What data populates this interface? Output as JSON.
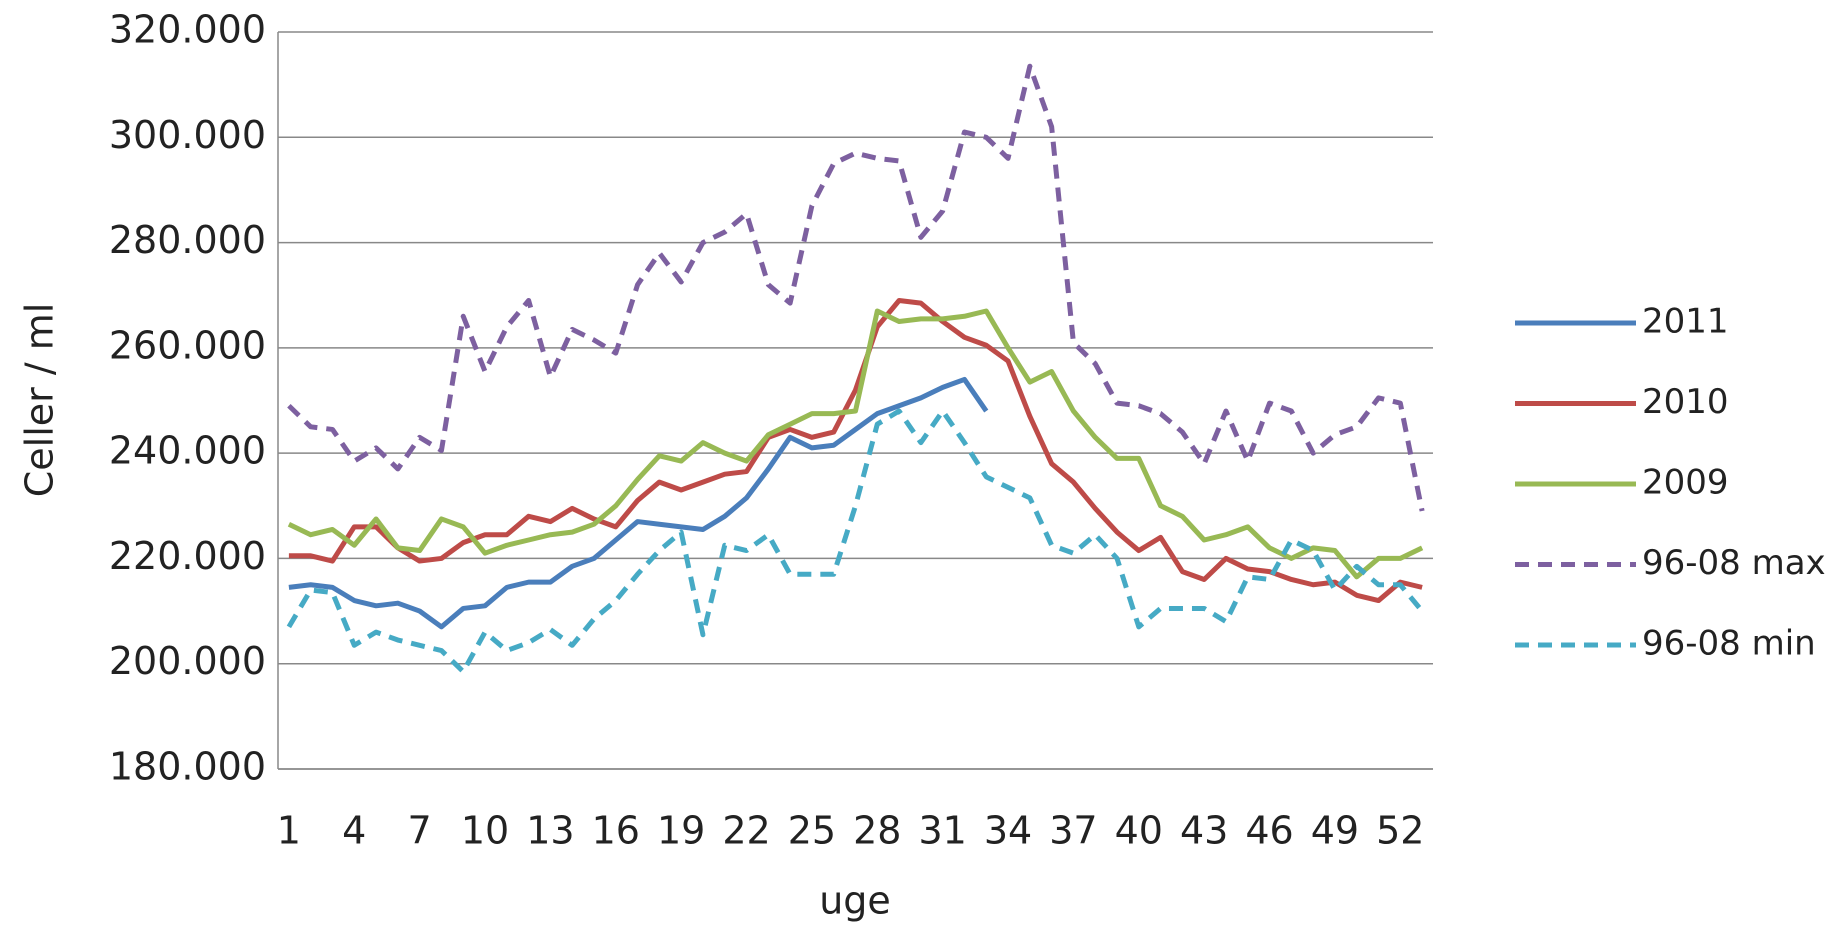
{
  "chart_data": {
    "type": "line",
    "y_label": "Celler / ml",
    "x_label": "uge",
    "categories": [
      "1",
      null,
      null,
      "4",
      null,
      null,
      "7",
      null,
      null,
      "10",
      null,
      null,
      "13",
      null,
      null,
      "16",
      null,
      null,
      "19",
      null,
      null,
      "22",
      null,
      null,
      "25",
      null,
      null,
      "28",
      null,
      null,
      "31",
      null,
      null,
      "34",
      null,
      null,
      "37",
      null,
      null,
      "40",
      null,
      null,
      "43",
      null,
      null,
      "46",
      null,
      null,
      "49",
      null,
      null,
      "52",
      null
    ],
    "ylim": [
      180000,
      320000
    ],
    "yticks": [
      {
        "value": 180000,
        "label": "180.000"
      },
      {
        "value": 200000,
        "label": "200.000"
      },
      {
        "value": 220000,
        "label": "220.000"
      },
      {
        "value": 240000,
        "label": "240.000"
      },
      {
        "value": 260000,
        "label": "260.000"
      },
      {
        "value": 280000,
        "label": "280.000"
      },
      {
        "value": 300000,
        "label": "300.000"
      },
      {
        "value": 320000,
        "label": "320.000"
      }
    ],
    "grid": true,
    "legend": "right",
    "series": [
      {
        "name": "2011",
        "color": "#4a7ebb",
        "line_style": "solid",
        "values": [
          214500,
          215000,
          214500,
          212000,
          211000,
          211500,
          210000,
          207000,
          210500,
          211000,
          214500,
          215500,
          215500,
          218500,
          220000,
          223500,
          227000,
          226500,
          226000,
          225500,
          228000,
          231500,
          237000,
          243000,
          241000,
          241500,
          244500,
          247500,
          249000,
          250500,
          252500,
          254000,
          248000,
          null,
          null,
          null,
          null,
          null,
          null,
          null,
          null,
          null,
          null,
          null,
          null,
          null,
          null,
          null,
          null,
          null,
          null,
          null,
          null
        ]
      },
      {
        "name": "2010",
        "color": "#be4b48",
        "line_style": "solid",
        "values": [
          220500,
          220500,
          219500,
          226000,
          226000,
          222000,
          219500,
          220000,
          223000,
          224500,
          224500,
          228000,
          227000,
          229500,
          227500,
          226000,
          231000,
          234500,
          233000,
          234500,
          236000,
          236500,
          243000,
          244500,
          243000,
          244000,
          252000,
          264000,
          269000,
          268500,
          265000,
          262000,
          260500,
          257500,
          247000,
          238000,
          234500,
          229500,
          225000,
          221500,
          224000,
          217500,
          216000,
          220000,
          218000,
          217500,
          216000,
          215000,
          215500,
          213000,
          212000,
          215500,
          214500
        ]
      },
      {
        "name": "2009",
        "color": "#98b954",
        "line_style": "solid",
        "values": [
          226500,
          224500,
          225500,
          222500,
          227500,
          222000,
          221500,
          227500,
          226000,
          221000,
          222500,
          223500,
          224500,
          225000,
          226500,
          230000,
          235000,
          239500,
          238500,
          242000,
          240000,
          238500,
          243500,
          245500,
          247500,
          247500,
          248000,
          267000,
          265000,
          265500,
          265500,
          266000,
          267000,
          260000,
          253500,
          255500,
          248000,
          243000,
          239000,
          239000,
          230000,
          228000,
          223500,
          224500,
          226000,
          222000,
          220000,
          222000,
          221500,
          216500,
          220000,
          220000,
          222000
        ]
      },
      {
        "name": "96-08 max",
        "color": "#7d60a0",
        "line_style": "dashed",
        "values": [
          249000,
          245000,
          244500,
          238500,
          241000,
          237000,
          243000,
          240500,
          266000,
          255500,
          264000,
          269000,
          254500,
          263500,
          261500,
          259000,
          272000,
          278000,
          272500,
          280000,
          282000,
          285500,
          272000,
          268500,
          287000,
          295000,
          297000,
          296000,
          295500,
          281000,
          286000,
          301000,
          300000,
          296000,
          313500,
          302000,
          261000,
          257000,
          249500,
          249000,
          247500,
          244000,
          238000,
          248000,
          238500,
          249500,
          248000,
          240000,
          243500,
          245000,
          250500,
          249500,
          229000
        ]
      },
      {
        "name": "96-08 min",
        "color": "#46aac5",
        "line_style": "dashed",
        "values": [
          207000,
          214000,
          213500,
          203500,
          206000,
          204500,
          203500,
          202500,
          198500,
          206000,
          202500,
          204000,
          206500,
          203500,
          208500,
          212000,
          217000,
          221500,
          225000,
          205500,
          222500,
          221500,
          224500,
          217000,
          217000,
          217000,
          230000,
          245500,
          248000,
          242000,
          248000,
          242000,
          235500,
          233500,
          231500,
          222500,
          221000,
          224500,
          220000,
          207000,
          210500,
          210500,
          210500,
          208000,
          216500,
          216000,
          223500,
          221500,
          214000,
          218500,
          215000,
          215000,
          210000
        ]
      }
    ]
  }
}
